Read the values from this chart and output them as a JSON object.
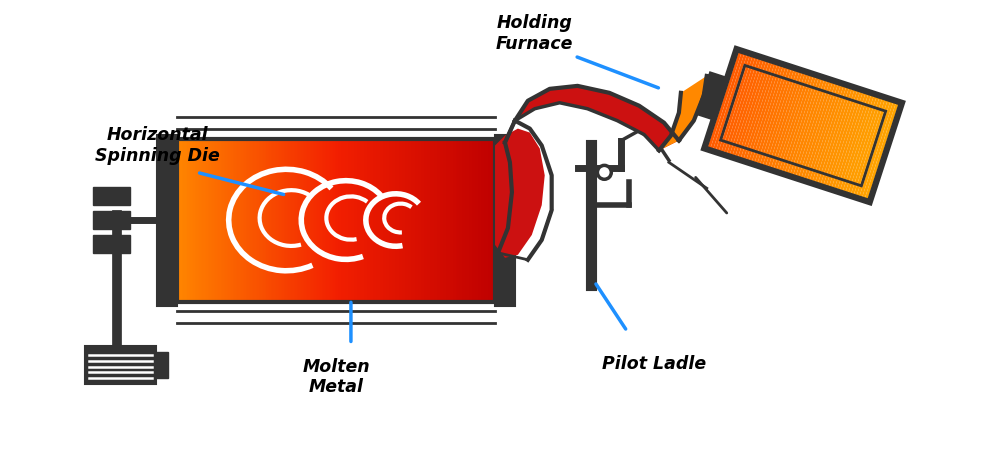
{
  "bg_color": "#ffffff",
  "dark_color": "#333333",
  "blue_color": "#1e90ff",
  "red_color": "#cc1111",
  "orange_color": "#ff8800",
  "white_color": "#ffffff",
  "labels": {
    "holding_furnace": "Holding\nFurnace",
    "horizontal_spinning_die": "Horizontal\nSpinning Die",
    "molten_metal": "Molten\nMetal",
    "pilot_ladle": "Pilot Ladle"
  }
}
